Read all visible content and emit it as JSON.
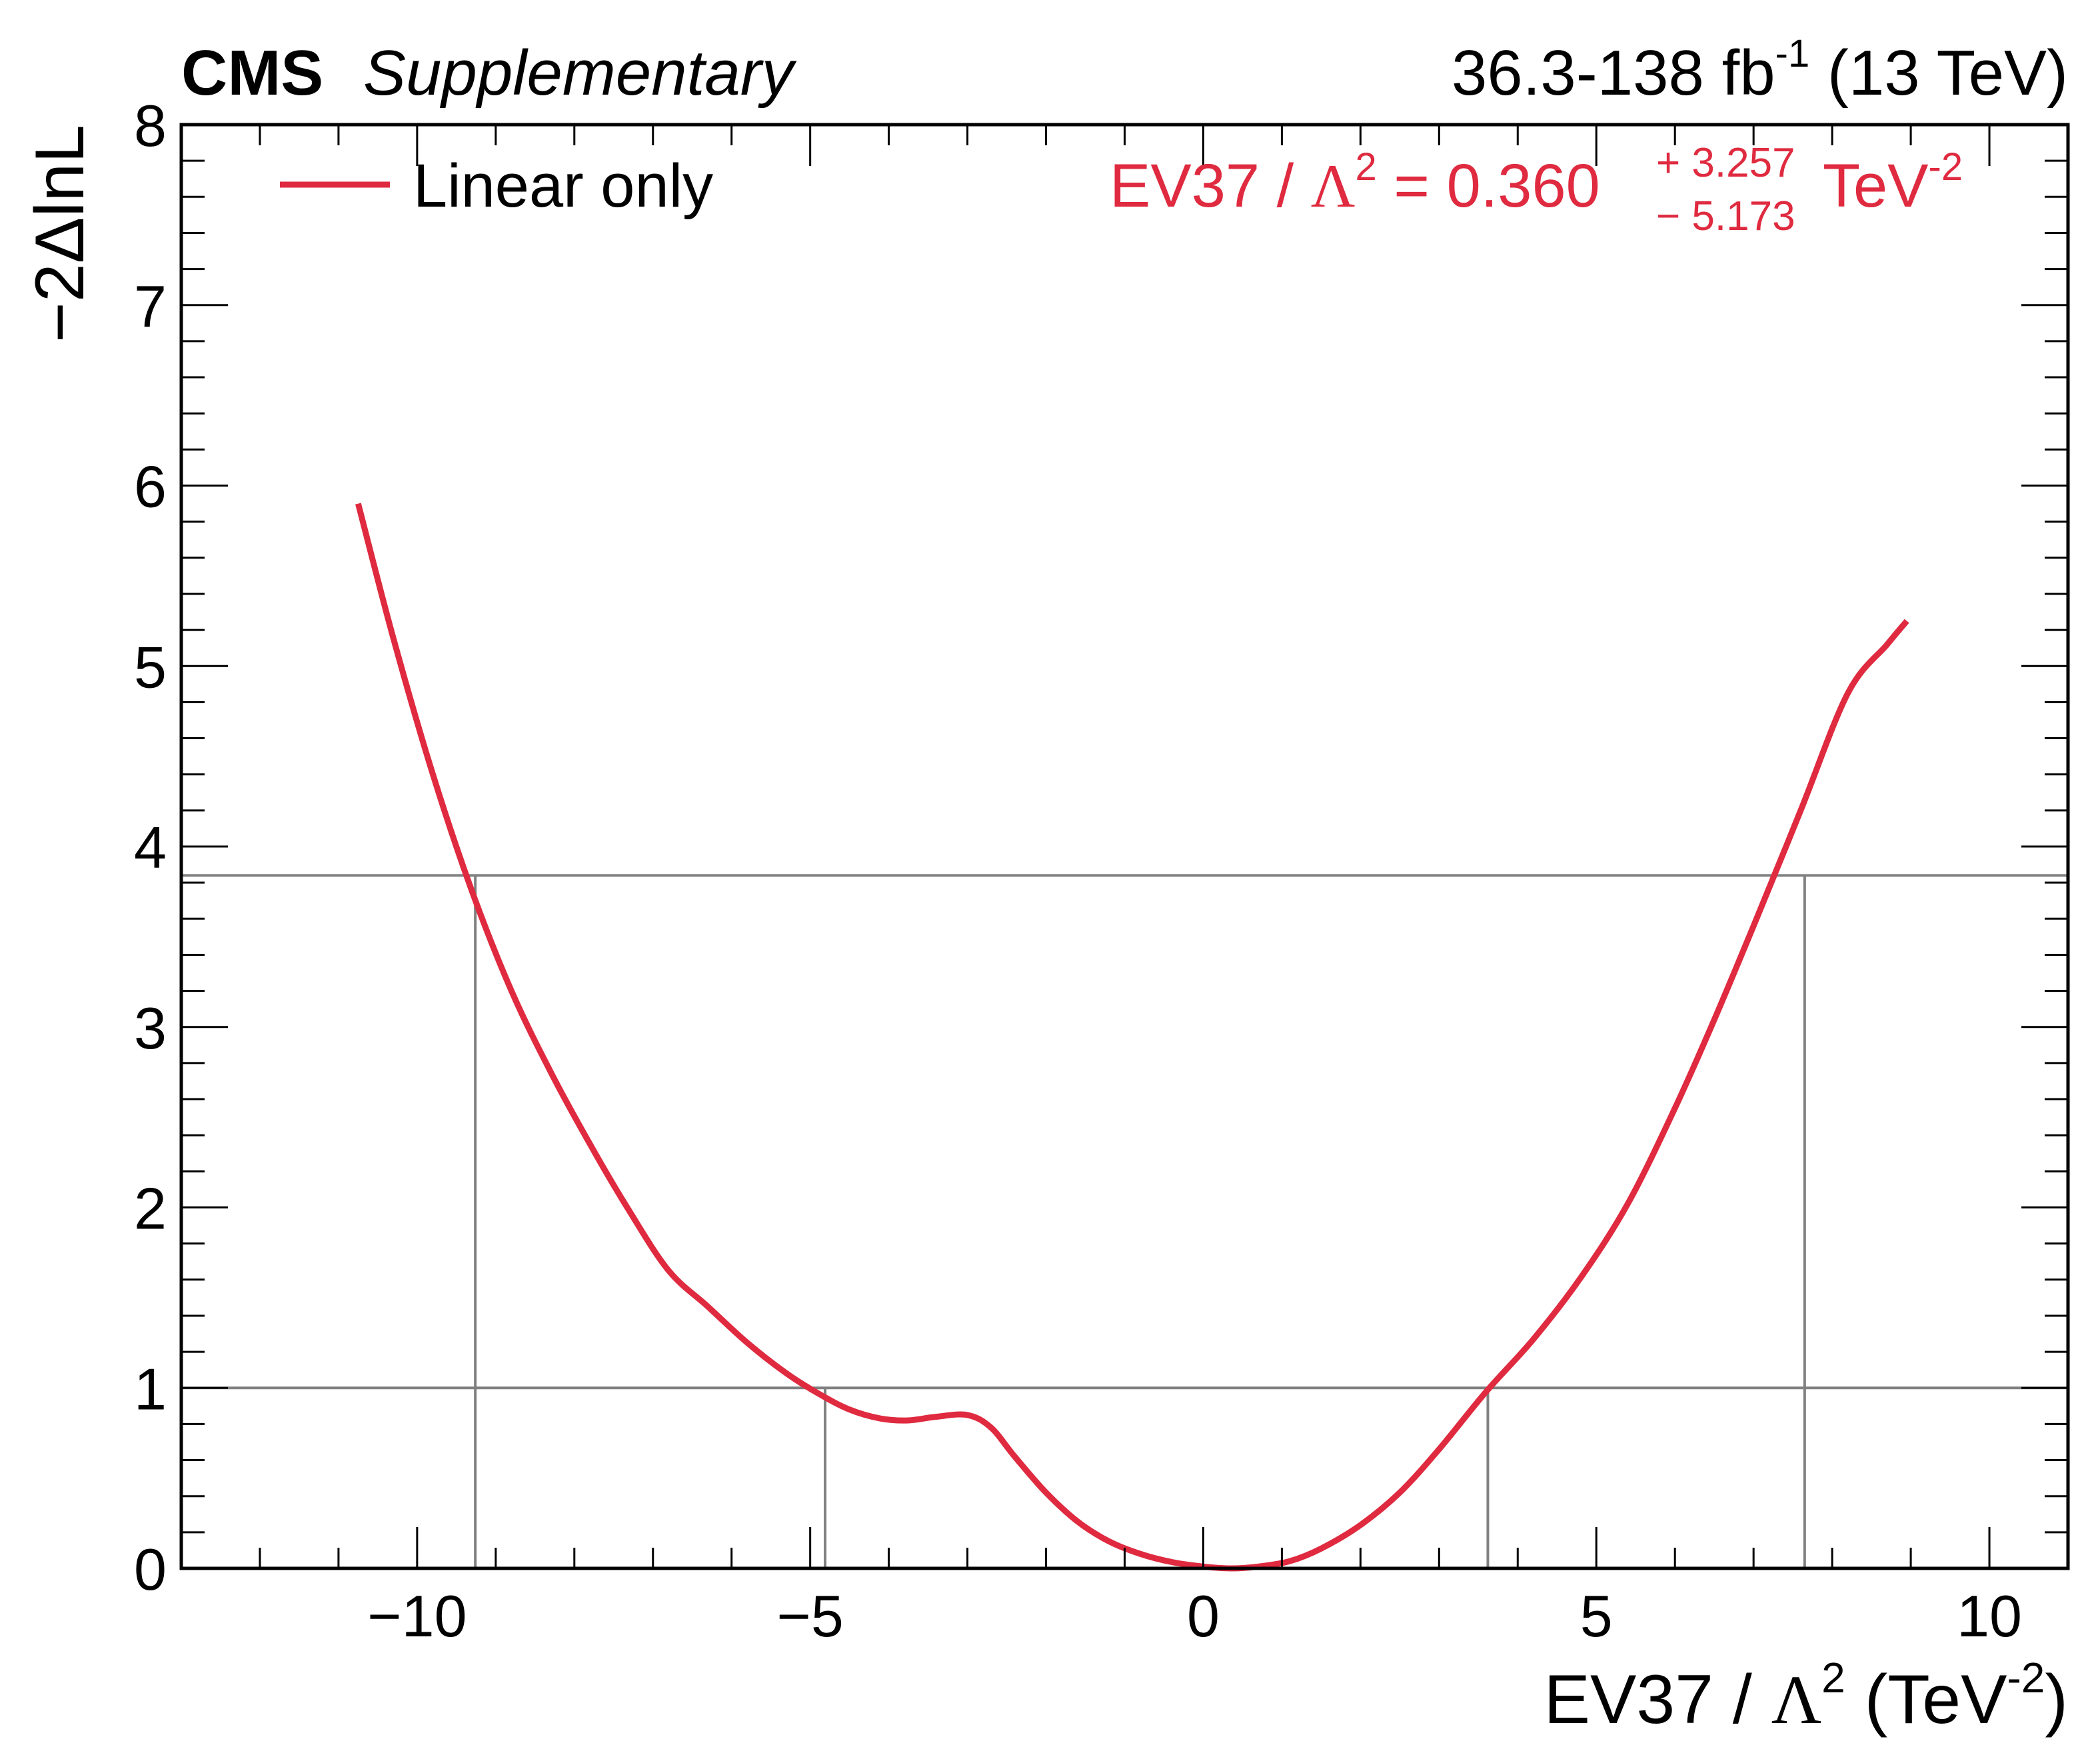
{
  "header": {
    "experiment": "CMS",
    "status": "Supplementary",
    "lumi_prefix": "36.3-138 fb",
    "lumi_exp": "-1",
    "lumi_suffix": " (13 TeV)"
  },
  "legend": {
    "entry": "Linear only",
    "placement": "top-left"
  },
  "result": {
    "lhs": "EV37 / ",
    "lambda": "Λ",
    "lambda_exp": "2",
    "equals": " = 0.360",
    "up": "+ 3.257",
    "down": "− 5.173",
    "unit": "TeV",
    "unit_exp": "-2"
  },
  "axes": {
    "ylabel": "−2ΔlnL",
    "xlabel_main": "EV37 / ",
    "xlabel_lambda": "Λ",
    "xlabel_exp": "2",
    "xlabel_unit_open": " (TeV",
    "xlabel_unit_exp": "-2",
    "xlabel_unit_close": ")"
  },
  "colors": {
    "curve": "#df2a3f",
    "reference_lines": "#808080",
    "frame": "#000000"
  },
  "chart_data": {
    "type": "line",
    "xlim": [
      -13,
      11
    ],
    "ylim": [
      0,
      8
    ],
    "x_ticks": [
      {
        "value": -10,
        "label": "−10"
      },
      {
        "value": -5,
        "label": "−5"
      },
      {
        "value": 0,
        "label": "0"
      },
      {
        "value": 5,
        "label": "5"
      },
      {
        "value": 10,
        "label": "10"
      }
    ],
    "y_ticks": [
      {
        "value": 0,
        "label": "0"
      },
      {
        "value": 1,
        "label": "1"
      },
      {
        "value": 2,
        "label": "2"
      },
      {
        "value": 3,
        "label": "3"
      },
      {
        "value": 4,
        "label": "4"
      },
      {
        "value": 5,
        "label": "5"
      },
      {
        "value": 6,
        "label": "6"
      },
      {
        "value": 7,
        "label": "7"
      },
      {
        "value": 8,
        "label": "8"
      }
    ],
    "x_minor_step": 1,
    "y_minor_step": 0.2,
    "grid": false,
    "series": [
      {
        "name": "Linear only",
        "x": [
          -10.75,
          -10.3,
          -9.8,
          -9.3,
          -8.8,
          -8.3,
          -7.8,
          -7.3,
          -6.8,
          -6.3,
          -5.8,
          -5.3,
          -4.9,
          -4.5,
          -4.1,
          -3.75,
          -3.4,
          -3.0,
          -2.7,
          -2.4,
          -2.0,
          -1.6,
          -1.2,
          -0.8,
          -0.4,
          0.0,
          0.36,
          0.7,
          1.1,
          1.5,
          2.0,
          2.5,
          3.0,
          3.6,
          4.2,
          4.8,
          5.4,
          6.0,
          6.5,
          7.0,
          7.6,
          8.2,
          8.7,
          8.95
        ],
        "y": [
          5.9,
          5.15,
          4.4,
          3.75,
          3.2,
          2.75,
          2.35,
          1.98,
          1.65,
          1.45,
          1.25,
          1.08,
          0.97,
          0.88,
          0.83,
          0.82,
          0.84,
          0.85,
          0.78,
          0.62,
          0.42,
          0.26,
          0.15,
          0.08,
          0.035,
          0.01,
          0.0,
          0.01,
          0.04,
          0.11,
          0.24,
          0.42,
          0.66,
          0.98,
          1.27,
          1.61,
          2.02,
          2.55,
          3.04,
          3.56,
          4.2,
          4.85,
          5.12,
          5.25
        ]
      }
    ],
    "reference_lines": {
      "horizontal": [
        1.0,
        3.84
      ],
      "vertical": [
        {
          "x": -9.26,
          "y_top": 3.84
        },
        {
          "x": -4.81,
          "y_top": 1.0
        },
        {
          "x": 3.62,
          "y_top": 1.0
        },
        {
          "x": 7.65,
          "y_top": 3.84
        }
      ]
    }
  }
}
